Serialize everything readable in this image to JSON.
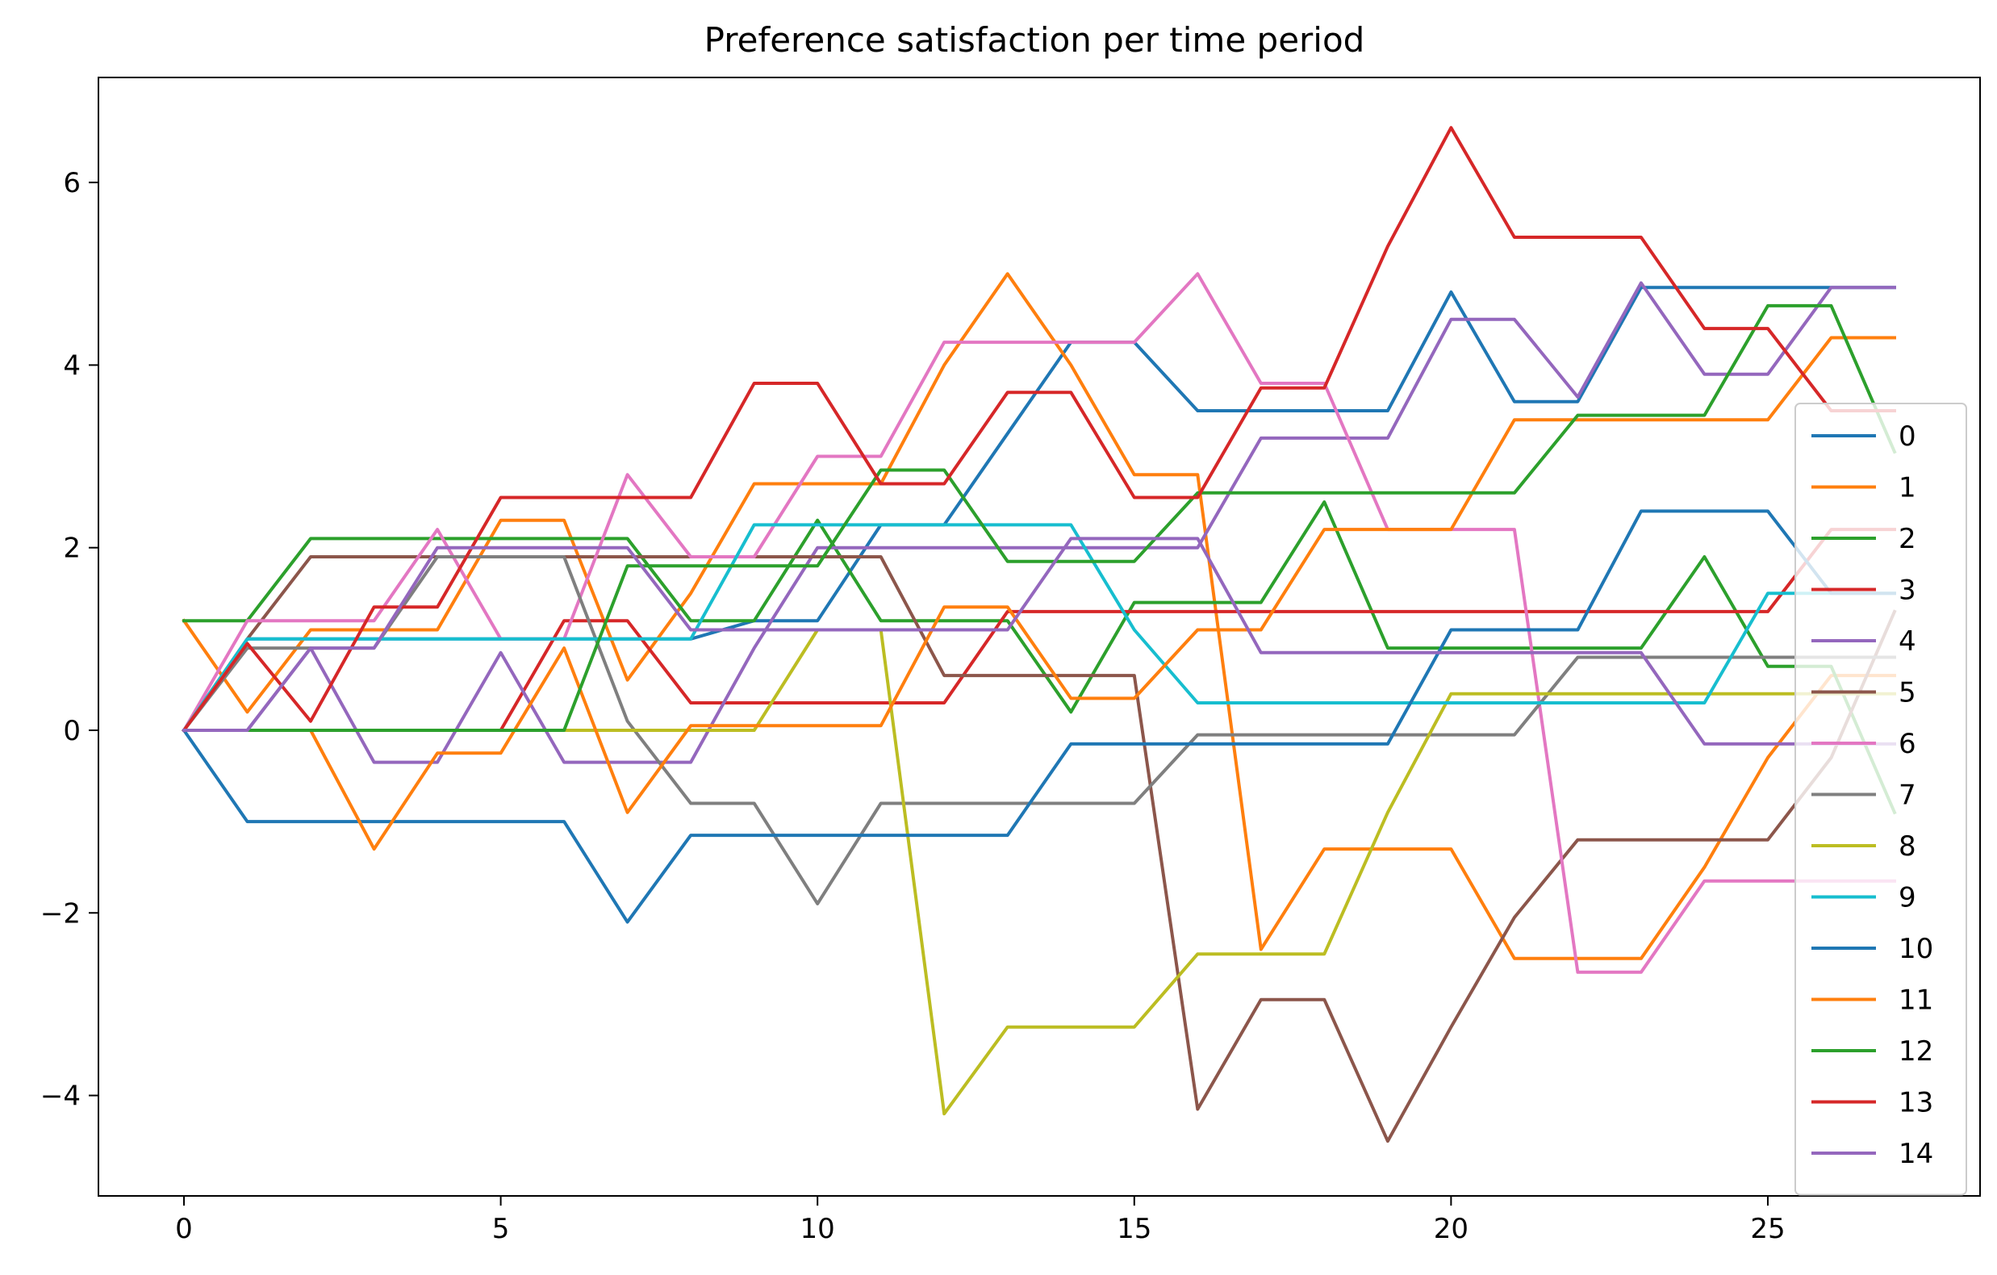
{
  "chart_data": {
    "type": "line",
    "title": "Preference satisfaction per time period",
    "xlabel": "",
    "ylabel": "",
    "xlim": [
      -1.35,
      28.35
    ],
    "ylim": [
      -5.1,
      7.15
    ],
    "xticks": [
      0,
      5,
      10,
      15,
      20,
      25
    ],
    "yticks": [
      -4,
      -2,
      0,
      2,
      4,
      6
    ],
    "ytick_labels": [
      "−4",
      "−2",
      "0",
      "2",
      "4",
      "6"
    ],
    "grid": false,
    "legend_position": "right",
    "x": [
      0,
      1,
      2,
      3,
      4,
      5,
      6,
      7,
      8,
      9,
      10,
      11,
      12,
      13,
      14,
      15,
      16,
      17,
      18,
      19,
      20,
      21,
      22,
      23,
      24,
      25,
      26,
      27
    ],
    "series": [
      {
        "name": "0",
        "color": "#1f77b4",
        "values": [
          0,
          1,
          1,
          1,
          1,
          1,
          1,
          1,
          1,
          1.2,
          1.2,
          2.25,
          2.25,
          3.25,
          4.25,
          4.25,
          3.5,
          3.5,
          3.5,
          3.5,
          4.8,
          3.6,
          3.6,
          4.85,
          4.85,
          4.85,
          4.85,
          4.85
        ]
      },
      {
        "name": "1",
        "color": "#ff7f0e",
        "values": [
          1.2,
          0.2,
          1.1,
          1.1,
          1.1,
          2.3,
          2.3,
          0.55,
          1.5,
          2.7,
          2.7,
          2.7,
          4.0,
          5.0,
          4.0,
          2.8,
          2.8,
          -2.4,
          -1.3,
          -1.3,
          -1.3,
          -2.5,
          -2.5,
          -2.5,
          -1.5,
          -0.3,
          0.6,
          0.6
        ]
      },
      {
        "name": "2",
        "color": "#2ca02c",
        "values": [
          1.2,
          1.2,
          2.1,
          2.1,
          2.1,
          2.1,
          2.1,
          2.1,
          1.2,
          1.2,
          2.3,
          1.2,
          1.2,
          1.2,
          0.2,
          1.4,
          1.4,
          1.4,
          2.5,
          0.9,
          0.9,
          0.9,
          0.9,
          0.9,
          1.9,
          0.7,
          0.7,
          -0.9
        ]
      },
      {
        "name": "3",
        "color": "#d62728",
        "values": [
          0,
          0,
          0,
          0,
          0,
          0,
          1.2,
          1.2,
          0.3,
          0.3,
          0.3,
          0.3,
          0.3,
          1.3,
          1.3,
          1.3,
          1.3,
          1.3,
          1.3,
          1.3,
          1.3,
          1.3,
          1.3,
          1.3,
          1.3,
          1.3,
          2.2,
          2.2
        ]
      },
      {
        "name": "4",
        "color": "#9467bd",
        "values": [
          0,
          0,
          0.9,
          -0.35,
          -0.35,
          0.85,
          -0.35,
          -0.35,
          -0.35,
          0.9,
          2.0,
          2.0,
          2.0,
          2.0,
          2.0,
          2.0,
          2.0,
          3.2,
          3.2,
          3.2,
          4.5,
          4.5,
          3.65,
          4.9,
          3.9,
          3.9,
          4.85,
          4.85
        ]
      },
      {
        "name": "5",
        "color": "#8c564b",
        "values": [
          0,
          1.0,
          1.9,
          1.9,
          1.9,
          1.9,
          1.9,
          1.9,
          1.9,
          1.9,
          1.9,
          1.9,
          0.6,
          0.6,
          0.6,
          0.6,
          -4.15,
          -2.95,
          -2.95,
          -4.5,
          -3.25,
          -2.05,
          -1.2,
          -1.2,
          -1.2,
          -1.2,
          -0.3,
          1.3
        ]
      },
      {
        "name": "6",
        "color": "#e377c2",
        "values": [
          0,
          1.2,
          1.2,
          1.2,
          2.2,
          1.0,
          1.0,
          2.8,
          1.9,
          1.9,
          3.0,
          3.0,
          4.25,
          4.25,
          4.25,
          4.25,
          5.0,
          3.8,
          3.8,
          2.2,
          2.2,
          2.2,
          -2.65,
          -2.65,
          -1.65,
          -1.65,
          -1.65,
          -1.65
        ]
      },
      {
        "name": "7",
        "color": "#7f7f7f",
        "values": [
          0,
          0.9,
          0.9,
          0.9,
          1.9,
          1.9,
          1.9,
          0.1,
          -0.8,
          -0.8,
          -1.9,
          -0.8,
          -0.8,
          -0.8,
          -0.8,
          -0.8,
          -0.05,
          -0.05,
          -0.05,
          -0.05,
          -0.05,
          -0.05,
          0.8,
          0.8,
          0.8,
          0.8,
          0.8,
          0.8
        ]
      },
      {
        "name": "8",
        "color": "#bcbd22",
        "values": [
          0,
          0,
          0,
          0,
          0,
          0,
          0,
          0,
          0,
          0,
          1.1,
          1.1,
          -4.2,
          -3.25,
          -3.25,
          -3.25,
          -2.45,
          -2.45,
          -2.45,
          -0.9,
          0.4,
          0.4,
          0.4,
          0.4,
          0.4,
          0.4,
          0.4,
          0.4
        ]
      },
      {
        "name": "9",
        "color": "#17becf",
        "values": [
          0,
          1.0,
          1.0,
          1.0,
          1.0,
          1.0,
          1.0,
          1.0,
          1.0,
          2.25,
          2.25,
          2.25,
          2.25,
          2.25,
          2.25,
          1.1,
          0.3,
          0.3,
          0.3,
          0.3,
          0.3,
          0.3,
          0.3,
          0.3,
          0.3,
          1.5,
          1.5,
          1.5
        ]
      },
      {
        "name": "10",
        "color": "#1f77b4",
        "values": [
          0,
          -1.0,
          -1.0,
          -1.0,
          -1.0,
          -1.0,
          -1.0,
          -2.1,
          -1.15,
          -1.15,
          -1.15,
          -1.15,
          -1.15,
          -1.15,
          -0.15,
          -0.15,
          -0.15,
          -0.15,
          -0.15,
          -0.15,
          1.1,
          1.1,
          1.1,
          2.4,
          2.4,
          2.4,
          1.5,
          1.5
        ]
      },
      {
        "name": "11",
        "color": "#ff7f0e",
        "values": [
          0,
          0,
          0,
          -1.3,
          -0.25,
          -0.25,
          0.9,
          -0.9,
          0.05,
          0.05,
          0.05,
          0.05,
          1.35,
          1.35,
          0.35,
          0.35,
          1.1,
          1.1,
          2.2,
          2.2,
          2.2,
          3.4,
          3.4,
          3.4,
          3.4,
          3.4,
          4.3,
          4.3
        ]
      },
      {
        "name": "12",
        "color": "#2ca02c",
        "values": [
          0,
          0,
          0,
          0,
          0,
          0,
          0,
          1.8,
          1.8,
          1.8,
          1.8,
          2.85,
          2.85,
          1.85,
          1.85,
          1.85,
          2.6,
          2.6,
          2.6,
          2.6,
          2.6,
          2.6,
          3.45,
          3.45,
          3.45,
          4.65,
          4.65,
          3.05
        ]
      },
      {
        "name": "13",
        "color": "#d62728",
        "values": [
          0,
          0.95,
          0.1,
          1.35,
          1.35,
          2.55,
          2.55,
          2.55,
          2.55,
          3.8,
          3.8,
          2.7,
          2.7,
          3.7,
          3.7,
          2.55,
          2.55,
          3.75,
          3.75,
          5.3,
          6.6,
          5.4,
          5.4,
          5.4,
          4.4,
          4.4,
          3.5,
          3.5
        ]
      },
      {
        "name": "14",
        "color": "#9467bd",
        "values": [
          0,
          0,
          0.9,
          0.9,
          2.0,
          2.0,
          2.0,
          2.0,
          1.1,
          1.1,
          1.1,
          1.1,
          1.1,
          1.1,
          2.1,
          2.1,
          2.1,
          0.85,
          0.85,
          0.85,
          0.85,
          0.85,
          0.85,
          0.85,
          -0.15,
          -0.15,
          -0.15,
          -0.15
        ]
      }
    ]
  }
}
